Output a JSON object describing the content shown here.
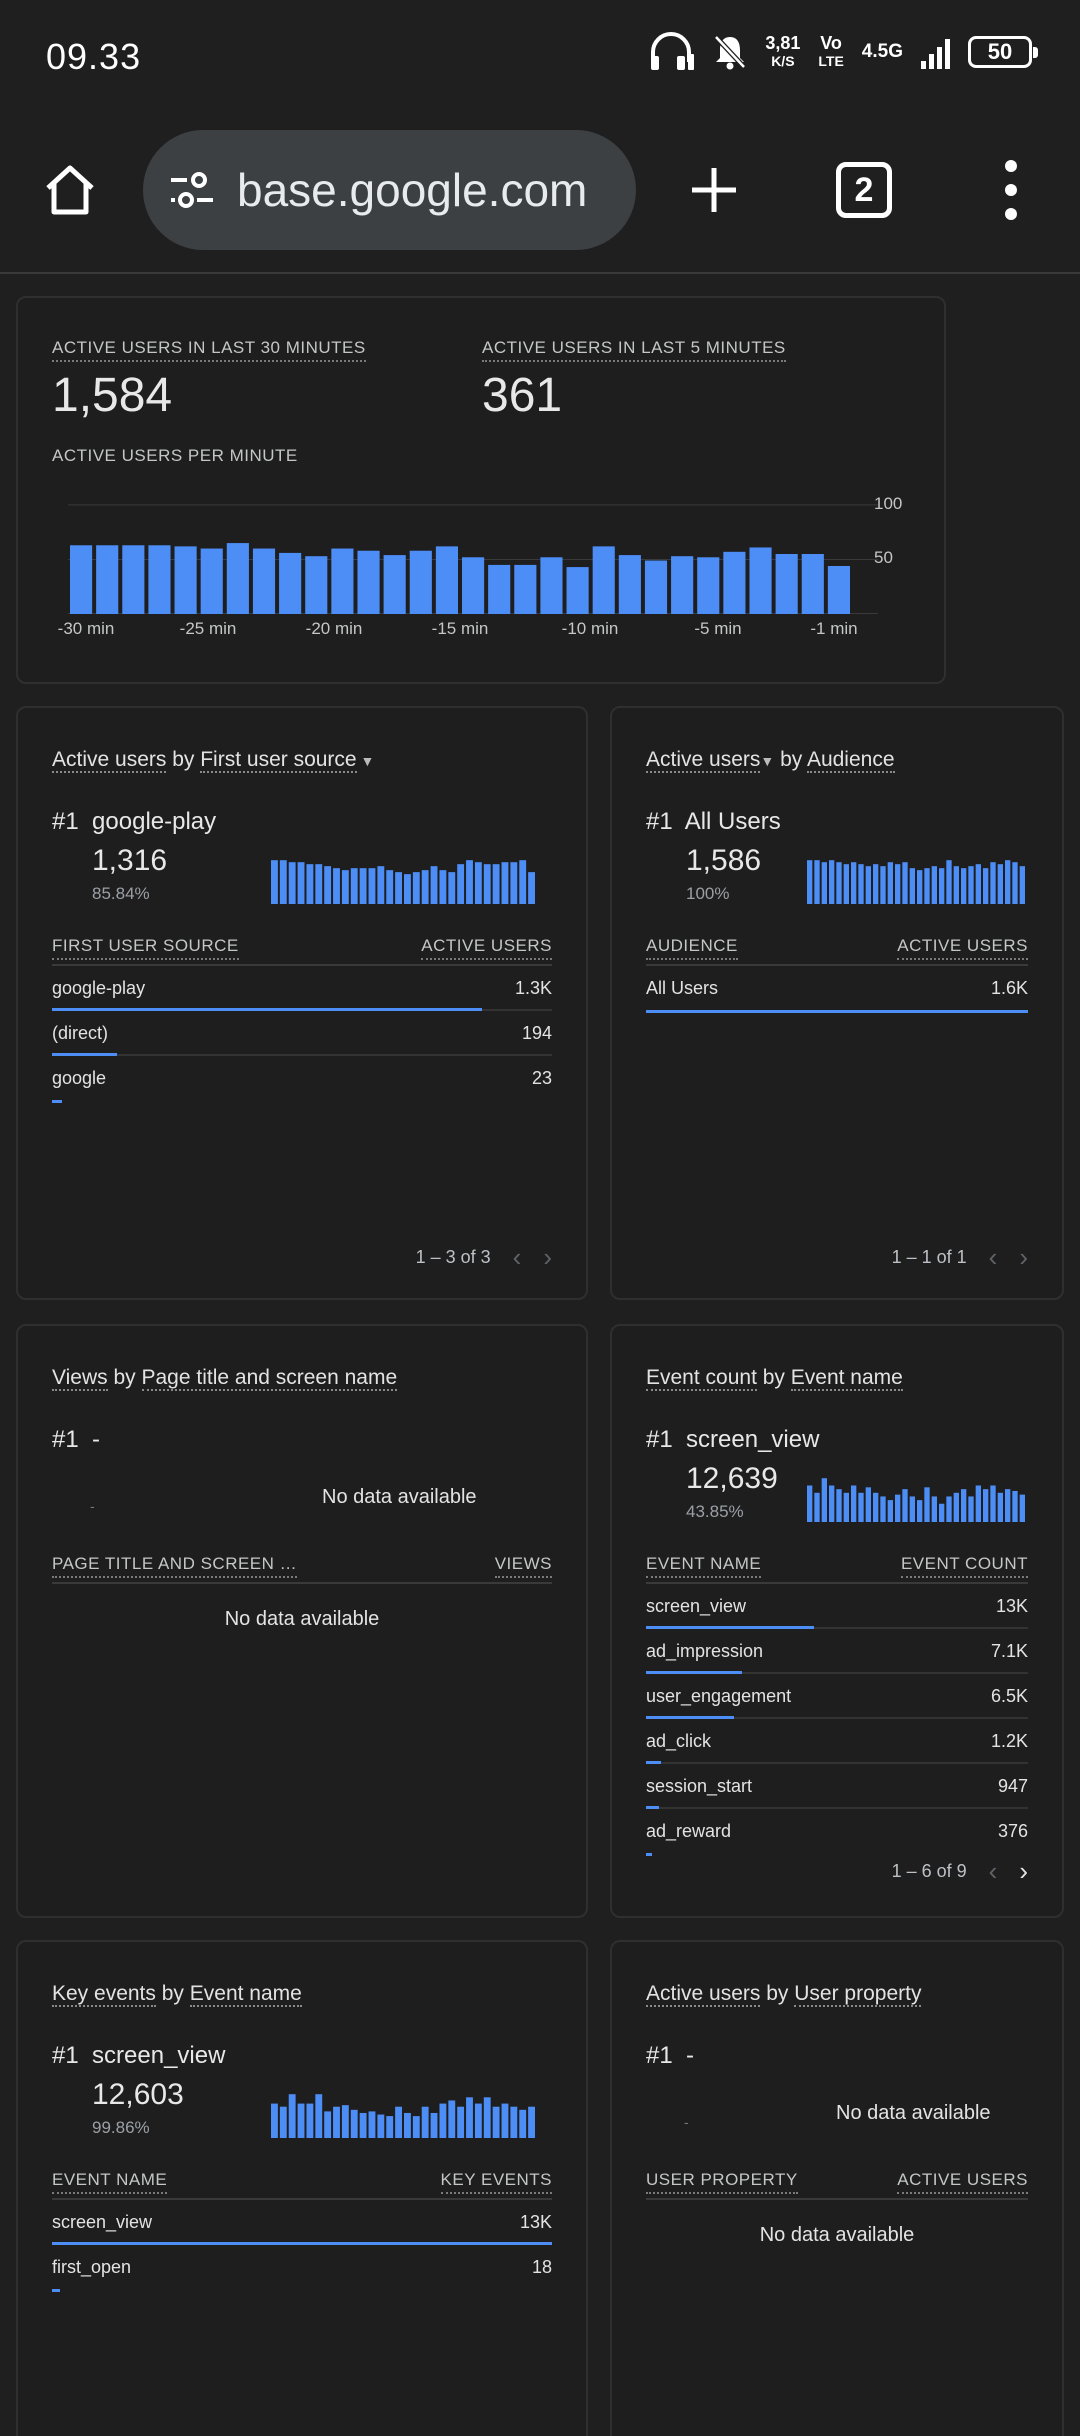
{
  "status": {
    "time": "09.33",
    "speed": "3,81",
    "speed_unit": "K/S",
    "net_top": "Vo",
    "net_bottom": "LTE",
    "network": "4.5G",
    "battery": "50"
  },
  "browser": {
    "url": "base.google.com",
    "tab_count": "2"
  },
  "realtime": {
    "label_30": "ACTIVE USERS IN LAST 30 MINUTES",
    "value_30": "1,584",
    "label_5": "ACTIVE USERS IN LAST 5 MINUTES",
    "value_5": "361",
    "label_per_minute": "ACTIVE USERS PER MINUTE",
    "chart_data": {
      "type": "bar",
      "x_tick_labels": [
        "-30 min",
        "-25 min",
        "-20 min",
        "-15 min",
        "-10 min",
        "-5 min",
        "-1 min"
      ],
      "values": [
        63,
        63,
        63,
        63,
        62,
        60,
        65,
        60,
        56,
        53,
        60,
        58,
        54,
        58,
        62,
        52,
        45,
        45,
        52,
        43,
        62,
        54,
        49,
        53,
        52,
        57,
        61,
        55,
        55,
        44
      ],
      "y_ticks": [
        50,
        100
      ],
      "ylim": [
        0,
        110
      ]
    }
  },
  "source_card": {
    "title_u1": "Active users",
    "title_mid": " by ",
    "title_u2": "First user source",
    "rank": "#1",
    "top_name": "google-play",
    "top_value": "1,316",
    "top_pct": "85.84%",
    "spark": [
      22,
      22,
      21,
      21,
      20,
      20,
      19,
      18,
      17,
      18,
      18,
      18,
      19,
      17,
      16,
      15,
      16,
      17,
      19,
      17,
      16,
      20,
      22,
      21,
      20,
      20,
      21,
      21,
      22,
      16
    ],
    "col1": "FIRST USER SOURCE",
    "col2": "ACTIVE USERS",
    "rows": [
      {
        "name": "google-play",
        "value": "1.3K",
        "fraction": 0.86
      },
      {
        "name": "(direct)",
        "value": "194",
        "fraction": 0.13
      },
      {
        "name": "google",
        "value": "23",
        "fraction": 0.02
      }
    ],
    "pager": "1 – 3 of 3"
  },
  "audience_card": {
    "title_u1": "Active users",
    "title_mid": " by ",
    "title_u2": "Audience",
    "rank": "#1",
    "top_name": "All Users",
    "top_value": "1,586",
    "top_pct": "100%",
    "spark": [
      22,
      22,
      21,
      22,
      21,
      20,
      21,
      20,
      19,
      20,
      19,
      21,
      20,
      21,
      18,
      17,
      18,
      19,
      18,
      22,
      19,
      18,
      19,
      20,
      18,
      21,
      20,
      22,
      21,
      19
    ],
    "col1": "AUDIENCE",
    "col2": "ACTIVE USERS",
    "rows": [
      {
        "name": "All Users",
        "value": "1.6K",
        "fraction": 1.0
      }
    ],
    "pager": "1 – 1 of 1"
  },
  "views_card": {
    "title_u1": "Views",
    "title_mid": " by ",
    "title_u2": "Page title and screen name",
    "rank": "#1",
    "top_name": "-",
    "dash": "-",
    "nodata_top": "No data available",
    "col1": "PAGE TITLE AND SCREEN …",
    "col2": "VIEWS",
    "nodata": "No data available"
  },
  "event_card": {
    "title_u1": "Event count",
    "title_mid": " by ",
    "title_u2": "Event name",
    "rank": "#1",
    "top_name": "screen_view",
    "top_value": "12,639",
    "top_pct": "43.85%",
    "spark": [
      20,
      16,
      24,
      20,
      18,
      16,
      20,
      16,
      19,
      16,
      14,
      12,
      15,
      18,
      14,
      12,
      19,
      14,
      10,
      14,
      16,
      18,
      14,
      20,
      18,
      20,
      16,
      18,
      17,
      15
    ],
    "col1": "EVENT NAME",
    "col2": "EVENT COUNT",
    "rows": [
      {
        "name": "screen_view",
        "value": "13K",
        "fraction": 0.44
      },
      {
        "name": "ad_impression",
        "value": "7.1K",
        "fraction": 0.25
      },
      {
        "name": "user_engagement",
        "value": "6.5K",
        "fraction": 0.23
      },
      {
        "name": "ad_click",
        "value": "1.2K",
        "fraction": 0.04
      },
      {
        "name": "session_start",
        "value": "947",
        "fraction": 0.035
      },
      {
        "name": "ad_reward",
        "value": "376",
        "fraction": 0.012
      }
    ],
    "pager": "1 – 6 of 9"
  },
  "key_events_card": {
    "title_u1": "Key events",
    "title_mid": " by ",
    "title_u2": "Event name",
    "rank": "#1",
    "top_name": "screen_view",
    "top_value": "12,603",
    "top_pct": "99.86%",
    "spark": [
      22,
      20,
      28,
      22,
      22,
      28,
      17,
      20,
      21,
      18,
      16,
      17,
      15,
      14,
      20,
      16,
      14,
      20,
      16,
      22,
      24,
      20,
      26,
      22,
      26,
      20,
      22,
      20,
      18,
      20
    ],
    "col1": "EVENT NAME",
    "col2": "KEY EVENTS",
    "rows": [
      {
        "name": "screen_view",
        "value": "13K",
        "fraction": 1.0
      },
      {
        "name": "first_open",
        "value": "18",
        "fraction": 0.002
      }
    ]
  },
  "property_card": {
    "title_u1": "Active users",
    "title_mid": " by ",
    "title_u2": "User property",
    "rank": "#1",
    "top_name": "-",
    "dash": "-",
    "nodata_top": "No data available",
    "col1": "USER PROPERTY",
    "col2": "ACTIVE USERS",
    "nodata": "No data available"
  },
  "colors": {
    "accent": "#4c8df6",
    "background": "#1f1f1f",
    "card": "#1e1e1e"
  }
}
